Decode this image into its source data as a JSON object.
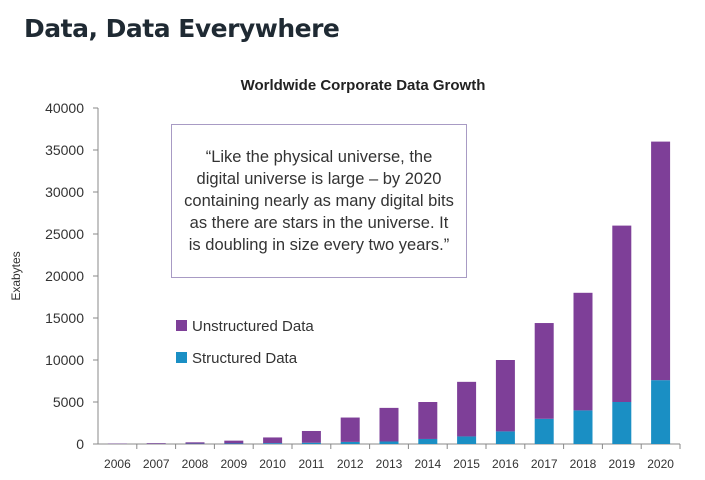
{
  "slide_title": "Data, Data Everywhere",
  "quote": "“Like the physical universe, the digital universe is large – by 2020 containing nearly as many digital bits as there are stars in the universe. It is doubling in size every two years.”",
  "chart_data": {
    "type": "bar",
    "stacked": true,
    "title": "Worldwide Corporate Data Growth",
    "xlabel": "",
    "ylabel": "Exabytes",
    "ylim": [
      0,
      40000
    ],
    "yticks": [
      0,
      5000,
      10000,
      15000,
      20000,
      25000,
      30000,
      35000,
      40000
    ],
    "grid": false,
    "legend": "center-left",
    "categories": [
      "2006",
      "2007",
      "2008",
      "2009",
      "2010",
      "2011",
      "2012",
      "2013",
      "2014",
      "2015",
      "2016",
      "2017",
      "2018",
      "2019",
      "2020"
    ],
    "series": [
      {
        "name": "Structured Data",
        "color": "#1a8fc4",
        "values": [
          10,
          20,
          40,
          60,
          100,
          150,
          250,
          300,
          600,
          900,
          1500,
          3000,
          4000,
          5000,
          7600
        ]
      },
      {
        "name": "Unstructured Data",
        "color": "#7e3f98",
        "values": [
          40,
          80,
          160,
          340,
          680,
          1400,
          2900,
          4000,
          4400,
          6500,
          8500,
          11400,
          14000,
          21000,
          28400
        ]
      }
    ]
  }
}
